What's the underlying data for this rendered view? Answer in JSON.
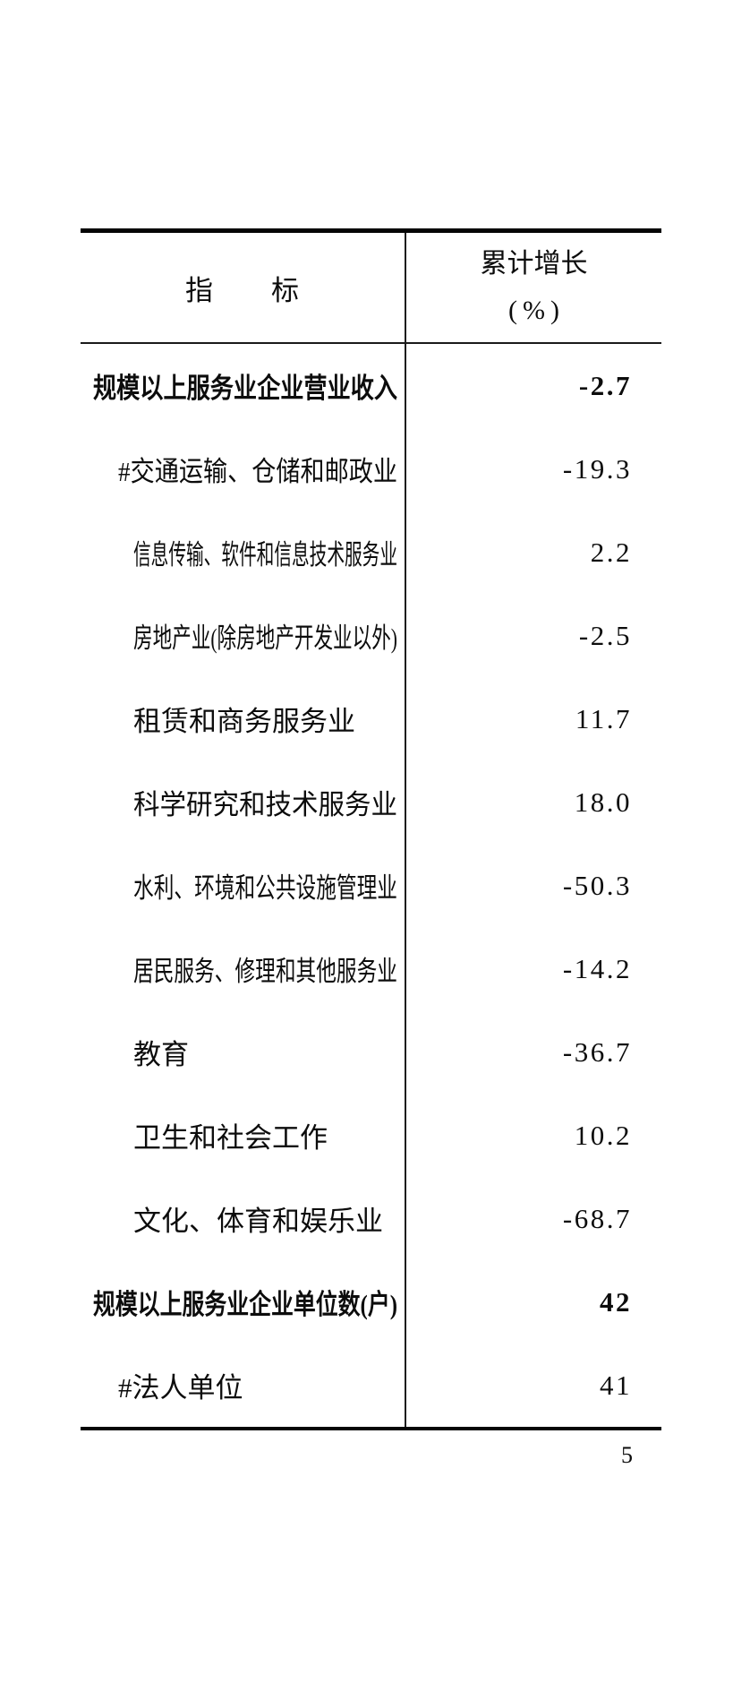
{
  "page": {
    "number": "5"
  },
  "table": {
    "header": {
      "indicator_label": "指　　标",
      "growth_label_line1": "累计增长",
      "growth_label_line2": "(%)"
    },
    "rows": [
      {
        "label": "规模以上服务业企业营业收入",
        "value": "-2.7",
        "bold": true,
        "indent": 0
      },
      {
        "label": "#交通运输、仓储和邮政业",
        "value": "-19.3",
        "bold": false,
        "indent": 1
      },
      {
        "label": "信息传输、软件和信息技术服务业",
        "value": "2.2",
        "bold": false,
        "indent": 2
      },
      {
        "label": "房地产业(除房地产开发业以外)",
        "value": "-2.5",
        "bold": false,
        "indent": 2
      },
      {
        "label": "租赁和商务服务业",
        "value": "11.7",
        "bold": false,
        "indent": 2
      },
      {
        "label": "科学研究和技术服务业",
        "value": "18.0",
        "bold": false,
        "indent": 2
      },
      {
        "label": "水利、环境和公共设施管理业",
        "value": "-50.3",
        "bold": false,
        "indent": 2
      },
      {
        "label": "居民服务、修理和其他服务业",
        "value": "-14.2",
        "bold": false,
        "indent": 2
      },
      {
        "label": "教育",
        "value": "-36.7",
        "bold": false,
        "indent": 2
      },
      {
        "label": "卫生和社会工作",
        "value": "10.2",
        "bold": false,
        "indent": 2
      },
      {
        "label": "文化、体育和娱乐业",
        "value": "-68.7",
        "bold": false,
        "indent": 2
      },
      {
        "label": "规模以上服务业企业单位数(户)",
        "value": "42",
        "bold": true,
        "indent": 0
      },
      {
        "label": "#法人单位",
        "value": "41",
        "bold": false,
        "indent": 1
      }
    ]
  }
}
